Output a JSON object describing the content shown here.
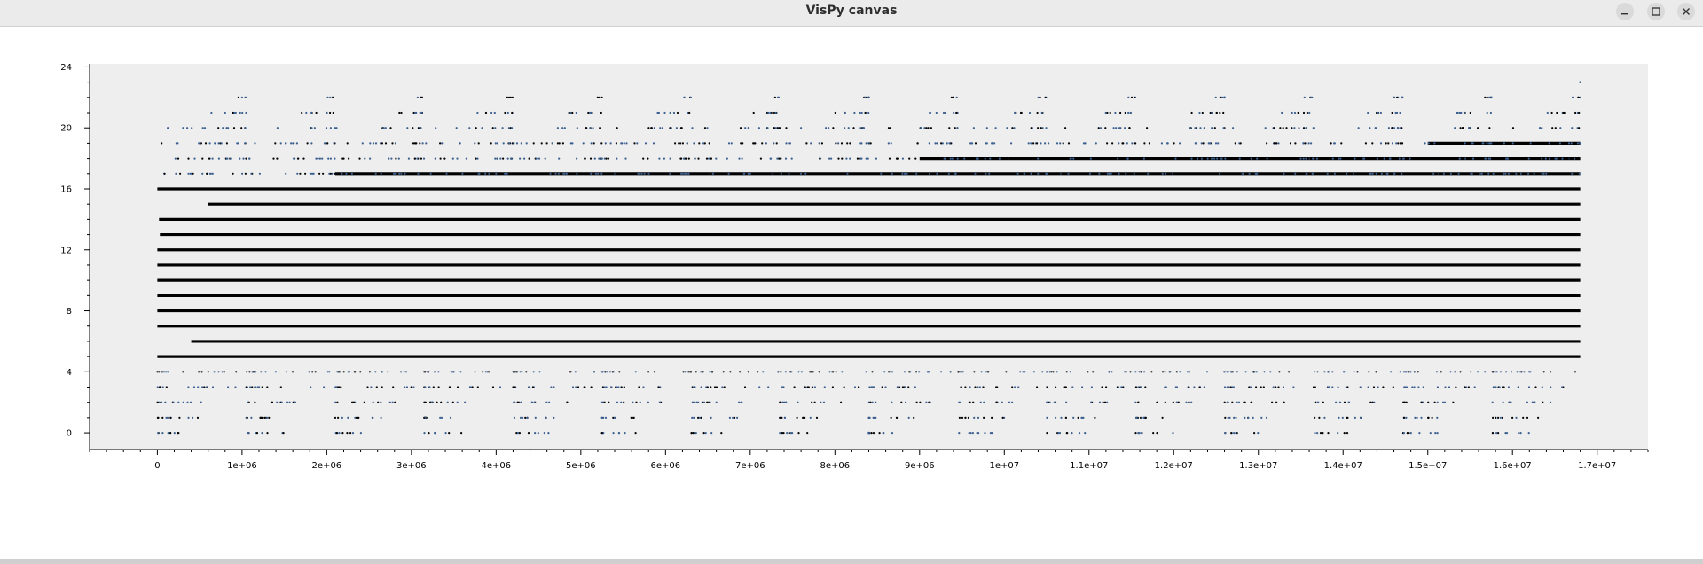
{
  "window": {
    "title": "VisPy canvas",
    "controls": [
      {
        "name": "minimize-button",
        "icon": "minimize-icon"
      },
      {
        "name": "maximize-button",
        "icon": "maximize-icon"
      },
      {
        "name": "close-button",
        "icon": "close-icon"
      }
    ]
  },
  "colors": {
    "plot_background": "#eeeeee",
    "marker_dense": "#000000",
    "marker_sparse": "#3b5f8f"
  },
  "chart_data": {
    "type": "scatter",
    "title": "",
    "xlabel": "",
    "ylabel": "",
    "xlim": [
      -800000,
      17600000
    ],
    "ylim": [
      -1.1,
      24.2
    ],
    "grid": false,
    "legend": "none",
    "x_ticks": [
      {
        "value": 0,
        "label": "0"
      },
      {
        "value": 1000000,
        "label": "1e+06"
      },
      {
        "value": 2000000,
        "label": "2e+06"
      },
      {
        "value": 3000000,
        "label": "3e+06"
      },
      {
        "value": 4000000,
        "label": "4e+06"
      },
      {
        "value": 5000000,
        "label": "5e+06"
      },
      {
        "value": 6000000,
        "label": "6e+06"
      },
      {
        "value": 7000000,
        "label": "7e+06"
      },
      {
        "value": 8000000,
        "label": "8e+06"
      },
      {
        "value": 9000000,
        "label": "9e+06"
      },
      {
        "value": 10000000,
        "label": "1e+07"
      },
      {
        "value": 11000000,
        "label": "1.1e+07"
      },
      {
        "value": 12000000,
        "label": "1.2e+07"
      },
      {
        "value": 13000000,
        "label": "1.3e+07"
      },
      {
        "value": 14000000,
        "label": "1.4e+07"
      },
      {
        "value": 15000000,
        "label": "1.5e+07"
      },
      {
        "value": 16000000,
        "label": "1.6e+07"
      },
      {
        "value": 17000000,
        "label": "1.7e+07"
      }
    ],
    "y_ticks": [
      {
        "value": 0,
        "label": "0"
      },
      {
        "value": 4,
        "label": "4"
      },
      {
        "value": 8,
        "label": "8"
      },
      {
        "value": 12,
        "label": "12"
      },
      {
        "value": 16,
        "label": "16"
      },
      {
        "value": 20,
        "label": "20"
      },
      {
        "value": 24,
        "label": "24"
      }
    ],
    "series": [
      {
        "x_start": 0,
        "x_end": 16800000,
        "cycle_starts": [
          0,
          1050000,
          2100000,
          3150000,
          4200000,
          5250000,
          6300000,
          7350000,
          8400000,
          9450000,
          10500000,
          11550000,
          12600000,
          13650000,
          14700000,
          15750000
        ],
        "dense_levels": [
          {
            "y": 5,
            "x_start": 0,
            "x_end": 16800000
          },
          {
            "y": 6,
            "x_start": 400000,
            "x_end": 16800000
          },
          {
            "y": 7,
            "x_start": 0,
            "x_end": 16800000
          },
          {
            "y": 8,
            "x_start": 0,
            "x_end": 16800000
          },
          {
            "y": 9,
            "x_start": 0,
            "x_end": 16800000
          },
          {
            "y": 10,
            "x_start": 0,
            "x_end": 16800000
          },
          {
            "y": 11,
            "x_start": 0,
            "x_end": 16800000
          },
          {
            "y": 12,
            "x_start": 0,
            "x_end": 16800000
          },
          {
            "y": 13,
            "x_start": 30000,
            "x_end": 16800000
          },
          {
            "y": 14,
            "x_start": 20000,
            "x_end": 16800000
          },
          {
            "y": 15,
            "x_start": 600000,
            "x_end": 16800000
          },
          {
            "y": 16,
            "x_start": 0,
            "x_end": 16800000
          },
          {
            "y": 17,
            "x_start": 2100000,
            "x_end": 16800000
          },
          {
            "y": 18,
            "x_start": 9000000,
            "x_end": 16800000
          },
          {
            "y": 19,
            "x_start": 15000000,
            "x_end": 16800000
          }
        ],
        "sparse_levels": [
          {
            "y": 0,
            "extent": 0.45
          },
          {
            "y": 1,
            "extent": 0.55
          },
          {
            "y": 2,
            "extent": 0.7
          },
          {
            "y": 3,
            "extent": 0.9
          },
          {
            "y": 4,
            "extent": 1.0
          },
          {
            "y": 17,
            "extent": 1.0
          },
          {
            "y": 18,
            "extent": 1.0
          },
          {
            "y": 19,
            "extent": 1.0
          },
          {
            "y": 20,
            "extent": 1.0
          },
          {
            "y": 21,
            "extent": 0.4
          },
          {
            "y": 22,
            "extent": 0.1
          }
        ],
        "extreme_points": [
          {
            "x": 8400000,
            "y": 0
          },
          {
            "x": 8400000,
            "y": 22
          },
          {
            "x": 12600000,
            "y": 22
          },
          {
            "x": 14700000,
            "y": 22
          },
          {
            "x": 15750000,
            "y": 22
          },
          {
            "x": 16800000,
            "y": 23
          }
        ]
      }
    ]
  }
}
